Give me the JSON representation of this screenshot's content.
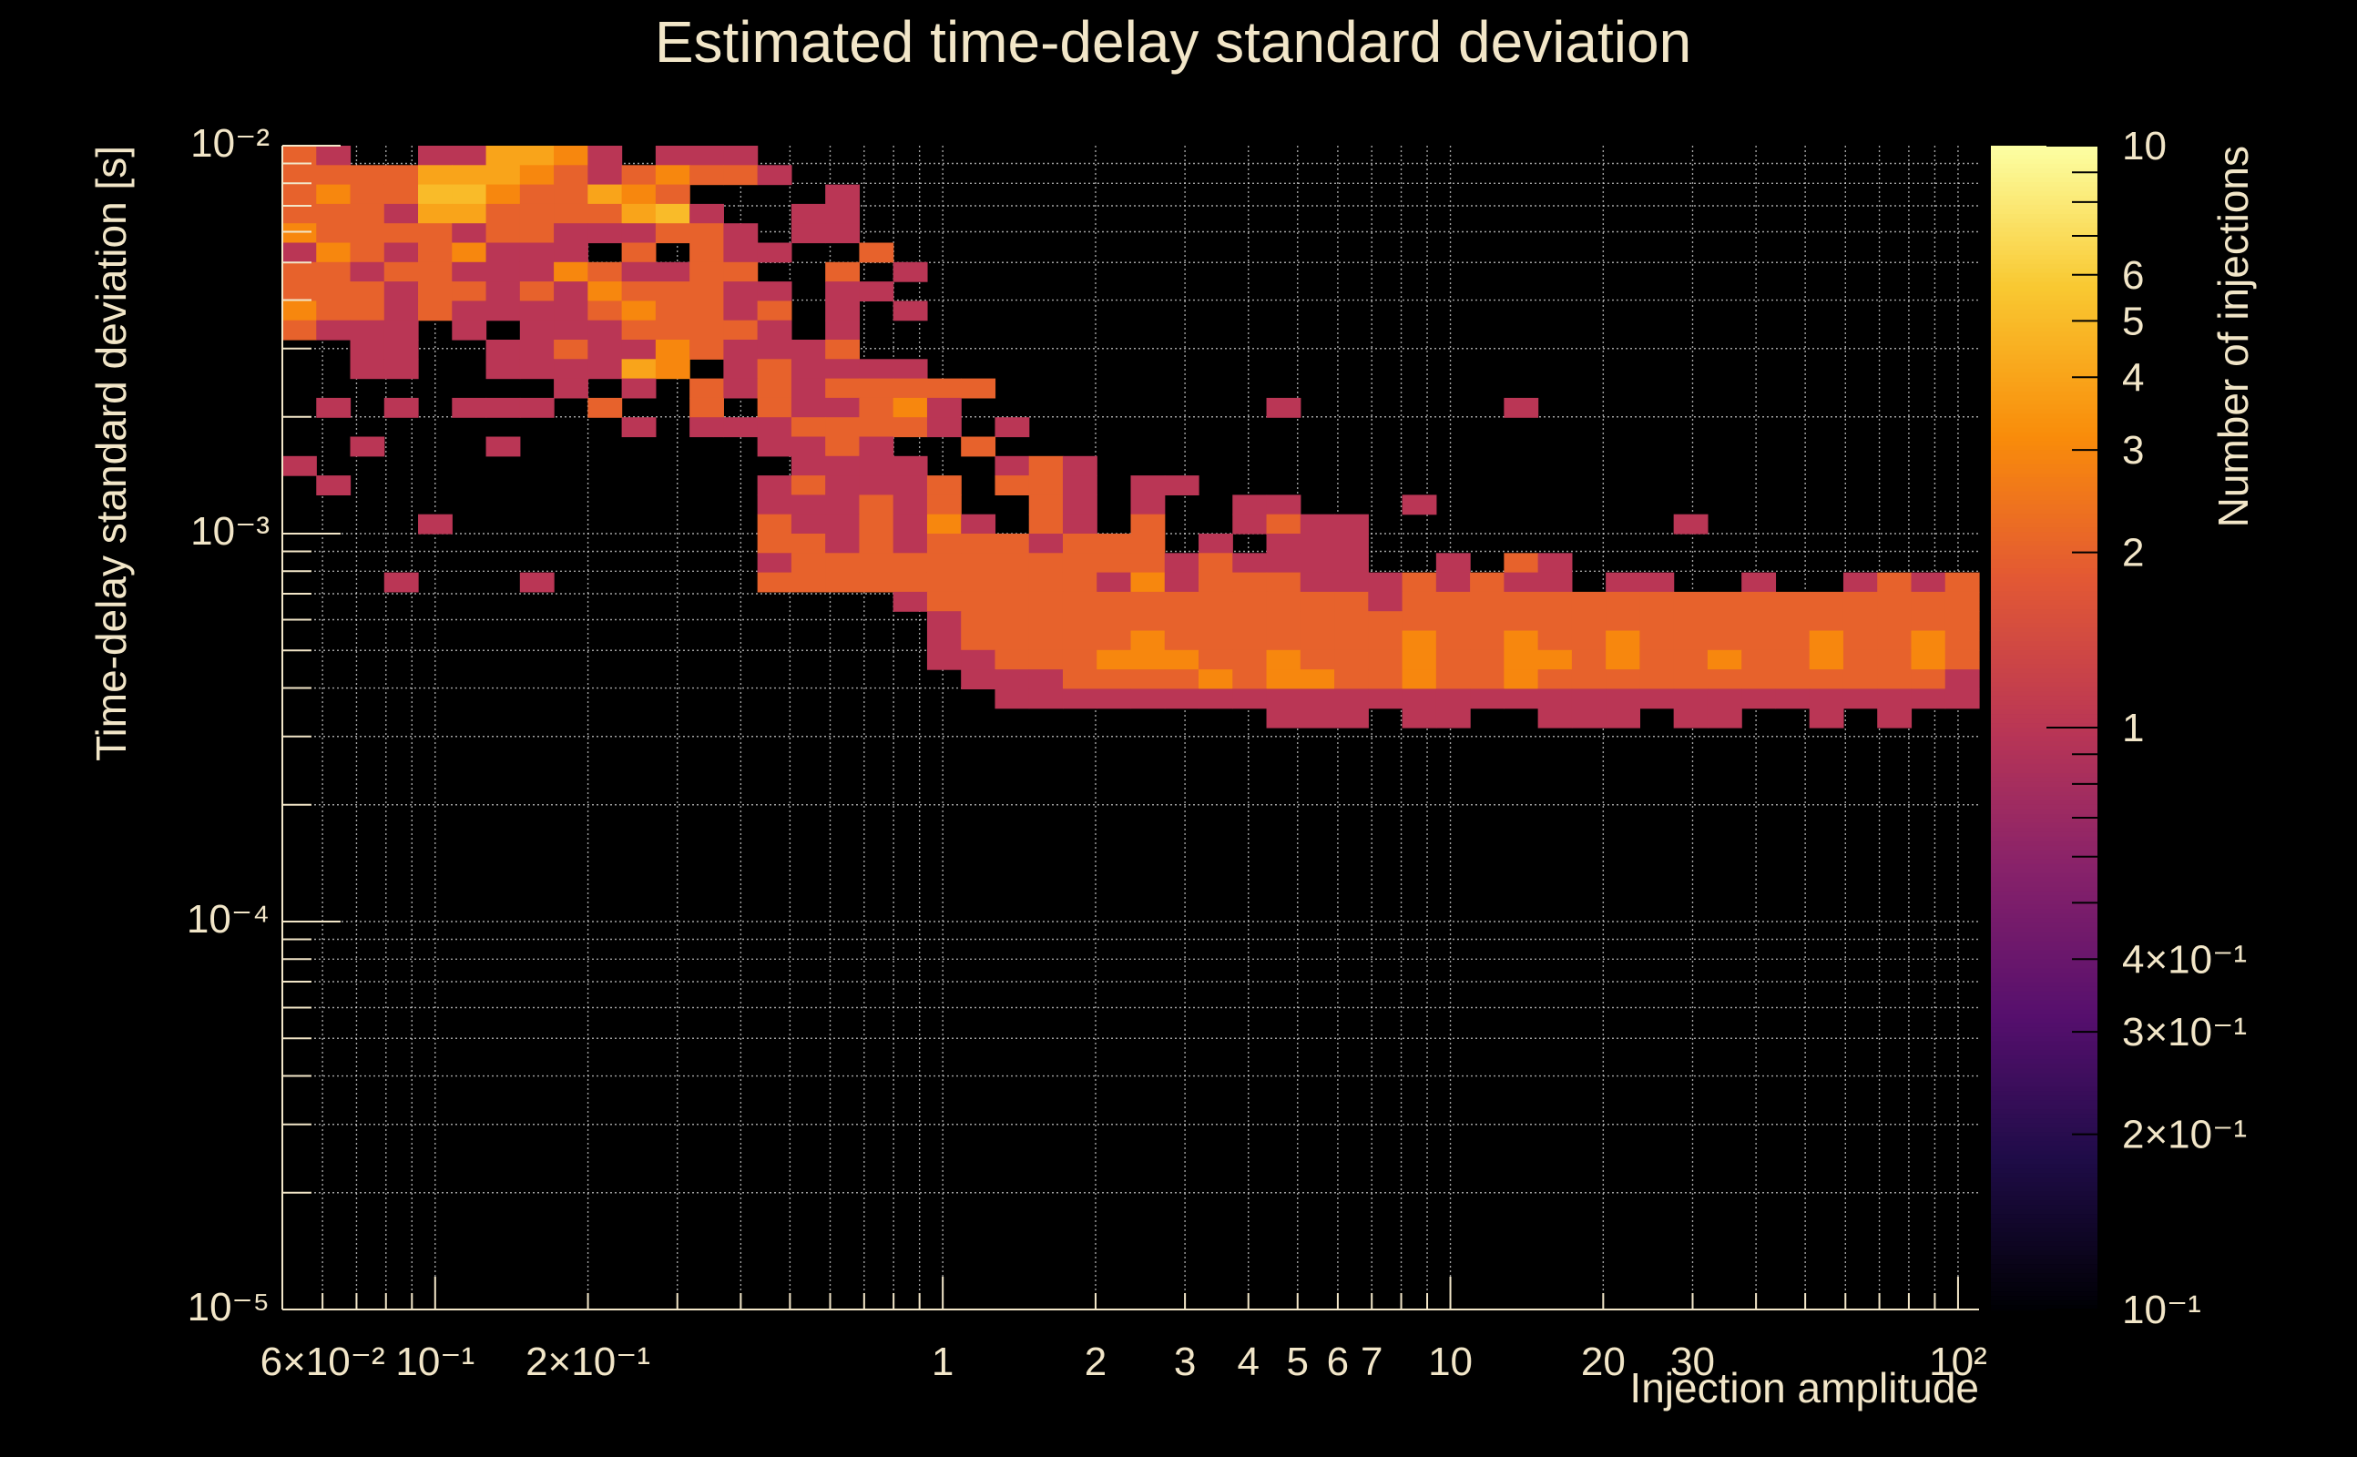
{
  "chart_data": {
    "type": "heatmap",
    "title": "Estimated time-delay standard deviation",
    "xlabel": "Injection amplitude",
    "ylabel": "Time-delay standard deviation [s]",
    "zlabel": "Number of injections",
    "x_scale": "log",
    "y_scale": "log",
    "z_scale": "log",
    "xlim": [
      0.05,
      110
    ],
    "ylim": [
      1e-05,
      0.01
    ],
    "zlim": [
      0.1,
      10
    ],
    "grid": true,
    "colormap": "inferno",
    "x_ticks": [
      {
        "value": 0.06,
        "label": "6×10⁻²"
      },
      {
        "value": 0.1,
        "label": "10⁻¹"
      },
      {
        "value": 0.2,
        "label": "2×10⁻¹"
      },
      {
        "value": 1,
        "label": "1"
      },
      {
        "value": 2,
        "label": "2"
      },
      {
        "value": 3,
        "label": "3"
      },
      {
        "value": 4,
        "label": "4"
      },
      {
        "value": 5,
        "label": "5"
      },
      {
        "value": 6,
        "label": "6"
      },
      {
        "value": 7,
        "label": "7"
      },
      {
        "value": 10,
        "label": "10"
      },
      {
        "value": 20,
        "label": "20"
      },
      {
        "value": 30,
        "label": "30"
      },
      {
        "value": 100,
        "label": "10²"
      }
    ],
    "y_ticks": [
      {
        "value": 1e-05,
        "label": "10⁻⁵"
      },
      {
        "value": 0.0001,
        "label": "10⁻⁴"
      },
      {
        "value": 0.001,
        "label": "10⁻³"
      },
      {
        "value": 0.01,
        "label": "10⁻²"
      }
    ],
    "z_ticks": [
      {
        "value": 10,
        "label": "10"
      },
      {
        "value": 6,
        "label": "6"
      },
      {
        "value": 5,
        "label": "5"
      },
      {
        "value": 4,
        "label": "4"
      },
      {
        "value": 3,
        "label": "3"
      },
      {
        "value": 2,
        "label": "2"
      },
      {
        "value": 1,
        "label": "1"
      },
      {
        "value": 0.4,
        "label": "4×10⁻¹"
      },
      {
        "value": 0.3,
        "label": "3×10⁻¹"
      },
      {
        "value": 0.2,
        "label": "2×10⁻¹"
      },
      {
        "value": 0.1,
        "label": "10⁻¹"
      }
    ],
    "x_bins": {
      "count": 50,
      "min": 0.05,
      "max": 110
    },
    "y_bins": {
      "count": 60,
      "min": 1e-05,
      "max": 0.01
    },
    "values_row_order": "top to bottom, rows 0-29 of the upper half (10⁻² down to ~3.2×10⁻⁴); remaining rows are empty",
    "values": [
      "21001144310111000000000000000000000000000000000000",
      "22224443212322100000000000000000000000000000000000",
      "23225532243200001000000000000000000000000000000000",
      "22214422224510011000000000000000000000000000000000",
      "32222122111221011000000000000000000000000000000000",
      "13212311102021100200000000000000000000000000000000",
      "22122111321122002010000000000000000000000000000000",
      "22212212132221101100000000000000000000000000000000",
      "32212111123221201010000000000000000000000000000000",
      "21110101112222101000000000000000000000000000000000",
      "00110011211321112000000000000000000000000000000000",
      "00110011114301211110000000000000000000000000000000",
      "00000000101021212222200000000000000000000000000000",
      "01010111020020211231000000000100000010000000000000",
      "00000000001011122221010000000000000000000000000000",
      "00100010000000112100200000000000000000000000000000",
      "10000000000000011110012100000000000000000000000000",
      "01000000000000121112022101100000000000000000000000",
      "00000000000000111212002101001100010000000000000000",
      "00001000000000211213102102001211000000000100000000",
      "00000000000000221212221222010111000000000000000000",
      "00000000000000122222222222121111001021000000000000",
      "00010001000000222222222213122211121211011001001212",
      "00000000000000000012222222222222122222222222222222",
      "00000000000000000001222222222222222222222222222222",
      "00000000000000000001222223222222232232232222232232",
      "00000000000000000001122233322322232233232232232232",
      "00000000000000000000111222232332232232222222222221",
      "00000000000000000000011111111111111111111111111111",
      "00000000000000000000000000000111011001110110010100"
    ]
  }
}
